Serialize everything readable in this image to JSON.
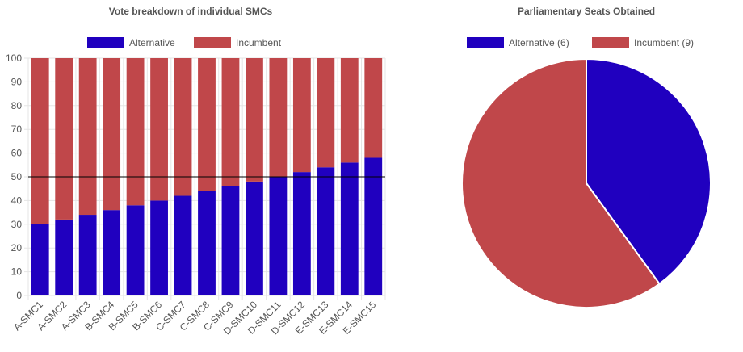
{
  "colors": {
    "alternative": "#2000bf",
    "incumbent": "#c0474a",
    "grid": "#e5e5e5",
    "text": "#555555",
    "threshold_line": "#000000"
  },
  "chart_data": [
    {
      "type": "bar",
      "stacked": true,
      "title": "Vote breakdown of individual SMCs",
      "categories": [
        "A-SMC1",
        "A-SMC2",
        "A-SMC3",
        "B-SMC4",
        "B-SMC5",
        "B-SMC6",
        "C-SMC7",
        "C-SMC8",
        "C-SMC9",
        "D-SMC10",
        "D-SMC11",
        "D-SMC12",
        "E-SMC13",
        "E-SMC14",
        "E-SMC15"
      ],
      "series": [
        {
          "name": "Alternative",
          "values": [
            30,
            32,
            34,
            36,
            38,
            40,
            42,
            44,
            46,
            48,
            50,
            52,
            54,
            56,
            58
          ]
        },
        {
          "name": "Incumbent",
          "values": [
            70,
            68,
            66,
            64,
            62,
            60,
            58,
            56,
            54,
            52,
            50,
            48,
            46,
            44,
            42
          ]
        }
      ],
      "ylim": [
        0,
        100
      ],
      "yticks": [
        0,
        10,
        20,
        30,
        40,
        50,
        60,
        70,
        80,
        90,
        100
      ],
      "reference_line": 50,
      "grid": true,
      "legend_position": "top"
    },
    {
      "type": "pie",
      "title": "Parliamentary Seats Obtained",
      "labels": [
        "Alternative (6)",
        "Incumbent (9)"
      ],
      "values": [
        6,
        9
      ],
      "legend_position": "top"
    }
  ]
}
